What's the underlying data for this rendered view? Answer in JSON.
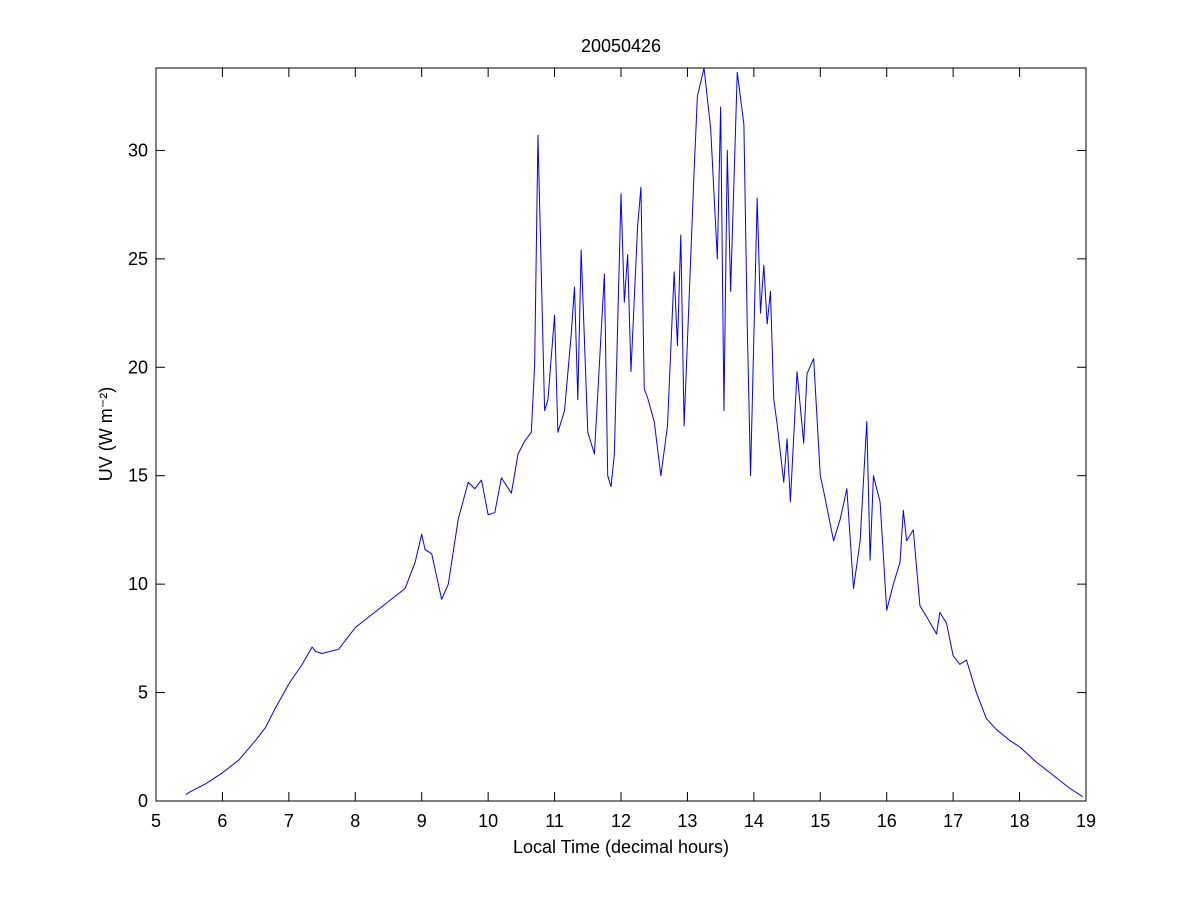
{
  "chart_data": {
    "type": "line",
    "title": "20050426",
    "xlabel": "Local Time (decimal hours)",
    "ylabel": "UV (W m⁻²)",
    "x": [
      5.45,
      5.5,
      5.75,
      6,
      6.25,
      6.5,
      6.65,
      6.8,
      7,
      7.2,
      7.35,
      7.4,
      7.5,
      7.75,
      8,
      8.25,
      8.5,
      8.75,
      8.9,
      9,
      9.05,
      9.15,
      9.3,
      9.4,
      9.55,
      9.7,
      9.8,
      9.9,
      10,
      10.1,
      10.2,
      10.35,
      10.45,
      10.55,
      10.65,
      10.7,
      10.75,
      10.85,
      10.9,
      11,
      11.05,
      11.15,
      11.25,
      11.3,
      11.35,
      11.4,
      11.5,
      11.6,
      11.75,
      11.8,
      11.85,
      11.9,
      12,
      12.05,
      12.1,
      12.15,
      12.25,
      12.3,
      12.35,
      12.4,
      12.5,
      12.6,
      12.7,
      12.8,
      12.85,
      12.9,
      12.95,
      13.1,
      13.15,
      13.25,
      13.35,
      13.45,
      13.5,
      13.55,
      13.6,
      13.65,
      13.75,
      13.85,
      13.9,
      13.95,
      14.05,
      14.1,
      14.15,
      14.2,
      14.25,
      14.3,
      14.35,
      14.45,
      14.5,
      14.55,
      14.65,
      14.75,
      14.8,
      14.9,
      15,
      15.05,
      15.2,
      15.3,
      15.4,
      15.5,
      15.6,
      15.7,
      15.75,
      15.8,
      15.9,
      16,
      16.1,
      16.2,
      16.25,
      16.3,
      16.4,
      16.5,
      16.6,
      16.75,
      16.8,
      16.9,
      17,
      17.1,
      17.2,
      17.35,
      17.5,
      17.65,
      17.85,
      18,
      18.25,
      18.5,
      18.75,
      18.95
    ],
    "series": [
      {
        "name": "UV",
        "color": "#0000ff",
        "values": [
          0.3,
          0.4,
          0.8,
          1.3,
          1.9,
          2.8,
          3.4,
          4.3,
          5.4,
          6.3,
          7.1,
          6.9,
          6.8,
          7.0,
          8.0,
          8.6,
          9.2,
          9.8,
          11.0,
          12.3,
          11.6,
          11.4,
          9.3,
          10.0,
          13.0,
          14.7,
          14.4,
          14.8,
          13.2,
          13.3,
          14.9,
          14.2,
          16.0,
          16.6,
          17.0,
          20.1,
          30.7,
          18.0,
          18.5,
          22.4,
          17.0,
          18.0,
          21.5,
          23.7,
          18.5,
          25.4,
          17.0,
          16.0,
          24.3,
          15.0,
          14.5,
          16.0,
          28.0,
          23.0,
          25.2,
          19.8,
          26.5,
          28.3,
          19.0,
          18.6,
          17.5,
          15.0,
          17.3,
          24.4,
          21.0,
          26.1,
          17.3,
          29.0,
          32.5,
          33.8,
          31.0,
          25.0,
          32.0,
          18.0,
          30.0,
          23.5,
          33.6,
          31.2,
          22.0,
          15.0,
          27.8,
          22.5,
          24.7,
          22.0,
          23.5,
          18.5,
          17.4,
          14.7,
          16.7,
          13.8,
          19.8,
          16.5,
          19.7,
          20.4,
          15.0,
          14.3,
          12.0,
          13.0,
          14.4,
          9.8,
          12.0,
          17.5,
          11.1,
          15.0,
          13.8,
          8.8,
          10.0,
          11.0,
          13.4,
          12.0,
          12.5,
          9.0,
          8.5,
          7.7,
          8.7,
          8.2,
          6.7,
          6.3,
          6.5,
          5.0,
          3.8,
          3.3,
          2.8,
          2.5,
          1.8,
          1.2,
          0.6,
          0.2
        ]
      }
    ],
    "xlim": [
      5,
      19
    ],
    "xticks": [
      5,
      6,
      7,
      8,
      9,
      10,
      11,
      12,
      13,
      14,
      15,
      16,
      17,
      18,
      19
    ],
    "ylim": [
      0,
      33.8
    ],
    "yticks": [
      0,
      5,
      10,
      15,
      20,
      25,
      30
    ],
    "grid": false
  }
}
